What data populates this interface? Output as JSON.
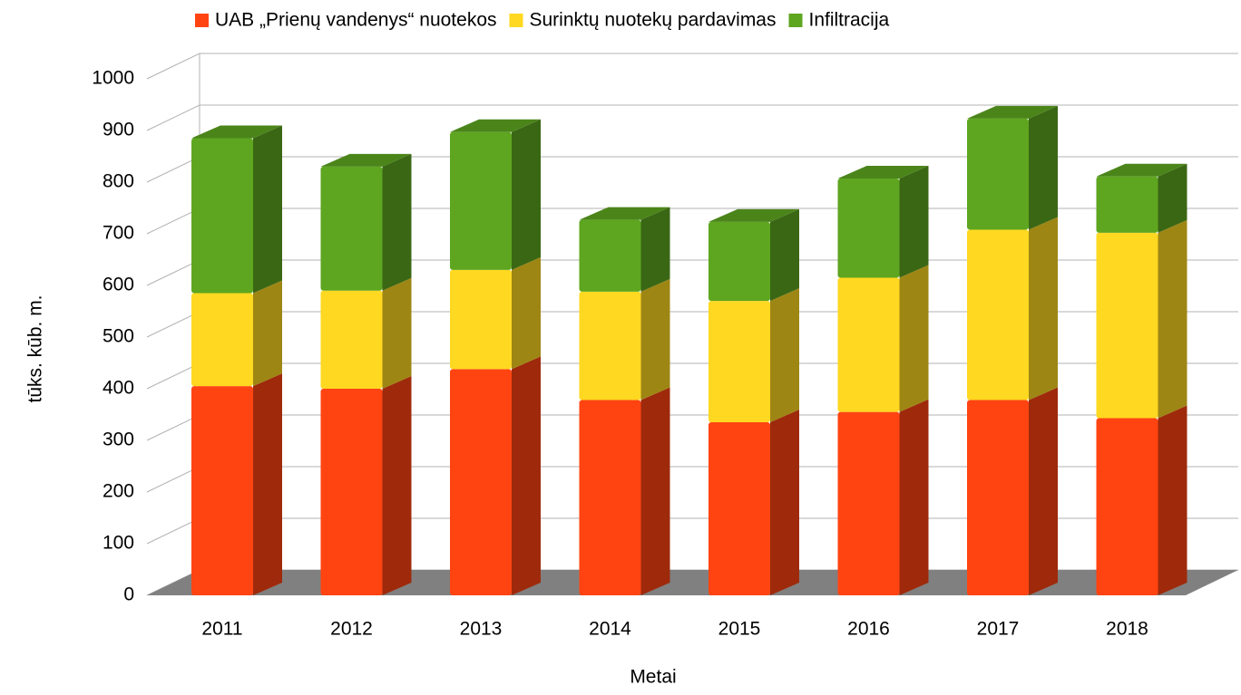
{
  "chart_data": {
    "type": "bar3d_stacked",
    "x_label": "Metai",
    "y_label": "tūks. kūb. m.",
    "categories": [
      "2011",
      "2012",
      "2013",
      "2014",
      "2015",
      "2016",
      "2017",
      "2018"
    ],
    "series": [
      {
        "name": "UAB „Prienų vandenys“ nuotekos",
        "color": "#ff4412",
        "values": [
          405,
          400,
          438,
          378,
          335,
          355,
          378,
          343
        ]
      },
      {
        "name": "Surinktų nuotekų pardavimas",
        "color": "#ffd821",
        "values": [
          180,
          190,
          192,
          210,
          235,
          260,
          330,
          359
        ]
      },
      {
        "name": "Infiltracija",
        "color": "#5ea620",
        "values": [
          300,
          240,
          267,
          139,
          153,
          192,
          215,
          109
        ]
      }
    ],
    "ylim": [
      0,
      1000
    ],
    "yticks": [
      0,
      100,
      200,
      300,
      400,
      500,
      600,
      700,
      800,
      900,
      1000
    ],
    "grid": true
  }
}
